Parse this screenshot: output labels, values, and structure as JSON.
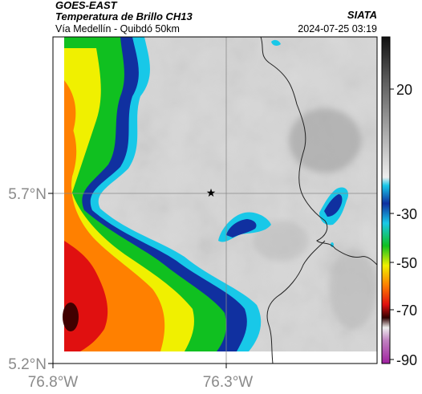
{
  "header": {
    "title": "GOES-EAST",
    "subtitle": "Temperatura de Brillo CH13",
    "location": "Vía Medellín - Quibdó 50km",
    "org": "SIATA",
    "datetime": "2024-07-25 03:19"
  },
  "map": {
    "lat_ticks": [
      "5.7°N",
      "5.2°N"
    ],
    "lon_ticks": [
      "76.8°W",
      "76.3°W"
    ],
    "marker_icon": "star-icon",
    "colorbar": {
      "tick_labels": [
        "20",
        "-30",
        "-50",
        "-70",
        "-90"
      ],
      "colors": {
        "black": "#111111",
        "gray_dark": "#5a5a5a",
        "gray_light": "#e6e6e6",
        "cyan": "#18c8e8",
        "blue": "#1030a0",
        "green": "#10c020",
        "yellow": "#f0f000",
        "orange": "#ff8000",
        "red": "#e01010",
        "dark_red": "#300000",
        "magenta": "#c040c0"
      }
    }
  }
}
